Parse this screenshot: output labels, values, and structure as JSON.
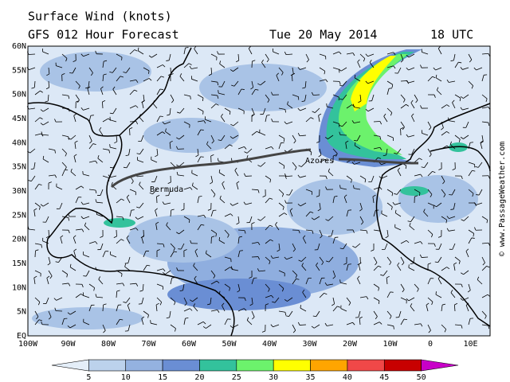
{
  "header": {
    "title": "Surface Wind (knots)",
    "subtitle": "GFS 012 Hour Forecast",
    "date": "Tue 20 May 2014",
    "time": "18 UTC"
  },
  "map": {
    "lat_labels": [
      "60N",
      "55N",
      "50N",
      "45N",
      "40N",
      "35N",
      "30N",
      "25N",
      "20N",
      "15N",
      "10N",
      "5N",
      "EQ"
    ],
    "lon_labels": [
      "100W",
      "90W",
      "80W",
      "70W",
      "60W",
      "50W",
      "40W",
      "30W",
      "20W",
      "10W",
      "0",
      "10E"
    ],
    "places": [
      "Azores",
      "Bermuda"
    ]
  },
  "legend": {
    "labels": [
      5,
      10,
      15,
      20,
      25,
      30,
      35,
      40,
      45,
      50
    ],
    "colors": [
      "#e4eef8",
      "#bcd2ec",
      "#94b2e0",
      "#6a8ed4",
      "#33c29c",
      "#6cf26c",
      "#ffff00",
      "#ffa500",
      "#f04848",
      "#c80000",
      "#c800c8"
    ]
  },
  "credit": "© www.PassageWeather.com"
}
